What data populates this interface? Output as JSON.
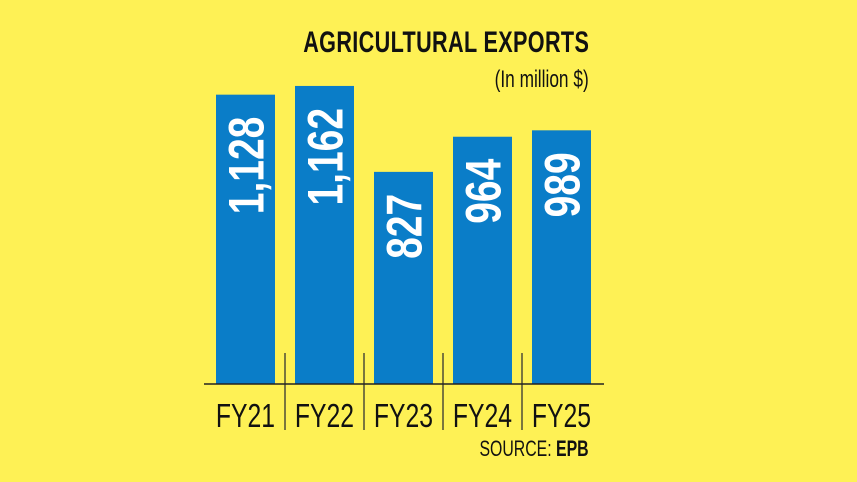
{
  "chart_data": {
    "type": "bar",
    "title": "AGRICULTURAL EXPORTS",
    "subtitle": "(In million $)",
    "categories": [
      "FY21",
      "FY22",
      "FY23",
      "FY24",
      "FY25"
    ],
    "values": [
      1128,
      1162,
      827,
      964,
      989
    ],
    "value_labels": [
      "1,128",
      "1,162",
      "827",
      "964",
      "989"
    ],
    "ylim": [
      0,
      1200
    ],
    "grid": false,
    "bar_color": "#0A7DC8",
    "background_color": "#FEF155",
    "source_label": "SOURCE:",
    "source": "EPB"
  }
}
